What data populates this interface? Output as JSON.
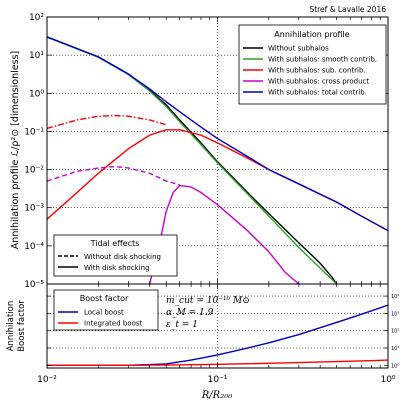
{
  "credit": "Stref & Lavalle 2016",
  "chart_data": [
    {
      "type": "line",
      "panel": "top",
      "ylabel": "Annihilation profile ℒ/ρ²⊙ [dimensionless]",
      "xscale": "log",
      "yscale": "log",
      "xlim": [
        0.01,
        1
      ],
      "ylim": [
        1e-05,
        100
      ],
      "x_ticks": [
        "10⁻²",
        "10⁻¹",
        "10⁰"
      ],
      "y_ticks": [
        "10⁻⁵",
        "10⁻⁴",
        "10⁻³",
        "10⁻²",
        "10⁻¹",
        "10⁰",
        "10¹",
        "10²"
      ],
      "grid": true,
      "legend_title": "Annihilation profile",
      "legend_position": "top-right",
      "tidal_legend_title": "Tidal effects",
      "tidal_legend_position": "bottom-left",
      "tidal_entries": [
        {
          "label": "Without disk shocking",
          "style": "dashed"
        },
        {
          "label": "With disk shocking",
          "style": "solid"
        }
      ],
      "series": [
        {
          "name": "Without subhalos",
          "color": "#000000",
          "style": "solid",
          "points": [
            [
              0.01,
              30
            ],
            [
              0.02,
              9
            ],
            [
              0.03,
              3.2
            ],
            [
              0.04,
              1.2
            ],
            [
              0.05,
              0.5
            ],
            [
              0.06,
              0.2
            ],
            [
              0.08,
              0.05
            ],
            [
              0.1,
              0.016
            ],
            [
              0.15,
              0.0025
            ],
            [
              0.2,
              0.0007
            ],
            [
              0.3,
              0.00012
            ],
            [
              0.4,
              3.5e-05
            ],
            [
              0.47,
              1.5e-05
            ],
            [
              0.5,
              1e-05
            ]
          ]
        },
        {
          "name": "With subhalos: smooth contrib.",
          "color": "#2ca02c",
          "style": "solid",
          "points": [
            [
              0.01,
              30
            ],
            [
              0.02,
              8.8
            ],
            [
              0.03,
              3.1
            ],
            [
              0.04,
              1.15
            ],
            [
              0.05,
              0.45
            ],
            [
              0.06,
              0.18
            ],
            [
              0.08,
              0.045
            ],
            [
              0.1,
              0.015
            ],
            [
              0.15,
              0.0023
            ],
            [
              0.2,
              0.0006
            ],
            [
              0.3,
              9e-05
            ],
            [
              0.4,
              2.6e-05
            ],
            [
              0.5,
              1e-05
            ]
          ]
        },
        {
          "name": "With subhalos: sub. contrib.",
          "color": "#ff0000",
          "style": "solid",
          "points": [
            [
              0.01,
              0.0005
            ],
            [
              0.015,
              0.0025
            ],
            [
              0.02,
              0.008
            ],
            [
              0.03,
              0.035
            ],
            [
              0.04,
              0.08
            ],
            [
              0.05,
              0.11
            ],
            [
              0.06,
              0.11
            ],
            [
              0.08,
              0.08
            ],
            [
              0.1,
              0.05
            ],
            [
              0.15,
              0.02
            ],
            [
              0.2,
              0.01
            ],
            [
              0.3,
              0.0042
            ],
            [
              0.5,
              0.0014
            ],
            [
              0.7,
              0.0006
            ],
            [
              1.0,
              0.00025
            ]
          ]
        },
        {
          "name": "With subhalos: sub. contrib. (no disk shocking)",
          "color": "#ff0000",
          "style": "dashdot",
          "points": [
            [
              0.01,
              0.12
            ],
            [
              0.015,
              0.2
            ],
            [
              0.02,
              0.25
            ],
            [
              0.025,
              0.26
            ],
            [
              0.03,
              0.25
            ],
            [
              0.04,
              0.2
            ],
            [
              0.05,
              0.15
            ]
          ]
        },
        {
          "name": "With subhalos: cross product",
          "color": "#cc00cc",
          "style": "solid",
          "points": [
            [
              0.04,
              1e-05
            ],
            [
              0.045,
              8e-05
            ],
            [
              0.05,
              0.0008
            ],
            [
              0.055,
              0.0025
            ],
            [
              0.06,
              0.0038
            ],
            [
              0.07,
              0.0035
            ],
            [
              0.08,
              0.0025
            ],
            [
              0.1,
              0.0012
            ],
            [
              0.15,
              0.00025
            ],
            [
              0.2,
              7e-05
            ],
            [
              0.25,
              2e-05
            ],
            [
              0.3,
              1e-05
            ]
          ]
        },
        {
          "name": "With subhalos: cross product (no disk shocking)",
          "color": "#cc00cc",
          "style": "dashed",
          "points": [
            [
              0.01,
              0.005
            ],
            [
              0.015,
              0.009
            ],
            [
              0.02,
              0.011
            ],
            [
              0.025,
              0.012
            ],
            [
              0.03,
              0.011
            ],
            [
              0.04,
              0.008
            ],
            [
              0.05,
              0.005
            ],
            [
              0.06,
              0.004
            ]
          ]
        },
        {
          "name": "With subhalos: total contrib.",
          "color": "#0000cc",
          "style": "solid",
          "points": [
            [
              0.01,
              30
            ],
            [
              0.02,
              9
            ],
            [
              0.03,
              3.2
            ],
            [
              0.04,
              1.3
            ],
            [
              0.05,
              0.6
            ],
            [
              0.06,
              0.33
            ],
            [
              0.08,
              0.13
            ],
            [
              0.1,
              0.065
            ],
            [
              0.15,
              0.022
            ],
            [
              0.2,
              0.01
            ],
            [
              0.3,
              0.0042
            ],
            [
              0.5,
              0.0014
            ],
            [
              0.7,
              0.0006
            ],
            [
              1.0,
              0.00025
            ]
          ]
        }
      ]
    },
    {
      "type": "line",
      "panel": "bottom",
      "ylabel": "Annihilation Boost factor",
      "xlabel": "R/R₂₀₀",
      "xscale": "log",
      "yscale": "log",
      "xlim": [
        0.01,
        1
      ],
      "ylim": [
        0.7,
        50000
      ],
      "y_ticks": [
        "10⁰",
        "10¹",
        "10²",
        "10³",
        "10⁴"
      ],
      "grid": true,
      "legend_title": "Boost factor",
      "legend_position": "top-left",
      "annotation": [
        "m_cut = 10⁻¹⁰ M⊙",
        "α_M = 1.9",
        "ε_t = 1"
      ],
      "series": [
        {
          "name": "Local boost",
          "color": "#0000cc",
          "style": "solid",
          "points": [
            [
              0.01,
              1.0
            ],
            [
              0.03,
              1.0
            ],
            [
              0.05,
              1.2
            ],
            [
              0.07,
              2
            ],
            [
              0.1,
              4
            ],
            [
              0.15,
              10
            ],
            [
              0.2,
              20
            ],
            [
              0.3,
              60
            ],
            [
              0.5,
              300
            ],
            [
              0.7,
              900
            ],
            [
              1.0,
              3000
            ]
          ]
        },
        {
          "name": "Integrated boost",
          "color": "#ff0000",
          "style": "solid",
          "points": [
            [
              0.01,
              1.0
            ],
            [
              0.03,
              1.0
            ],
            [
              0.05,
              1.03
            ],
            [
              0.1,
              1.15
            ],
            [
              0.2,
              1.3
            ],
            [
              0.3,
              1.45
            ],
            [
              0.5,
              1.65
            ],
            [
              0.7,
              1.8
            ],
            [
              1.0,
              2.0
            ]
          ]
        }
      ]
    }
  ]
}
